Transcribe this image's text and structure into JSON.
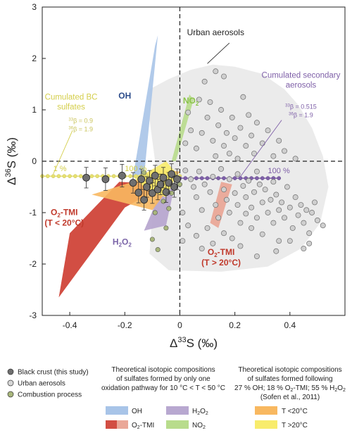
{
  "chart_data": {
    "type": "scatter",
    "xlabel_main": "Δ",
    "xlabel_sup": "33",
    "xlabel_tail": "S (‰)",
    "ylabel_main": "Δ",
    "ylabel_sup": "36",
    "ylabel_tail": "S (‰)",
    "xlim": [
      -0.5,
      0.6
    ],
    "ylim": [
      -3,
      3
    ],
    "x_ticks": [
      {
        "value": -0.4,
        "label": "-0.4"
      },
      {
        "value": -0.2,
        "label": "-0.2"
      },
      {
        "value": 0,
        "label": "0"
      },
      {
        "value": 0.2,
        "label": "0.2"
      },
      {
        "value": 0.4,
        "label": "0.4"
      }
    ],
    "y_ticks": [
      {
        "value": 3,
        "label": "3"
      },
      {
        "value": 2,
        "label": "2"
      },
      {
        "value": 1,
        "label": "1"
      },
      {
        "value": 0,
        "label": "0"
      },
      {
        "value": -1,
        "label": "-1"
      },
      {
        "value": -2,
        "label": "-2"
      },
      {
        "value": -3,
        "label": "-3"
      }
    ],
    "colors": {
      "oh": "#a8c4e8",
      "h2o2": "#b8a8d0",
      "no2": "#b8dc8c",
      "o2tmi_cold": "#d24e43",
      "o2tmi_warm": "#eaa898",
      "mix_cold": "#f8b860",
      "mix_warm": "#f8ec6c",
      "urban_cloud": "#ebebeb",
      "bc_line": "#e6e070",
      "secondary_line": "#7f60a8",
      "black_crust": "#6f6f6f",
      "urban_point": "#cfcfcf",
      "combustion": "#a9b77c"
    },
    "regions": {
      "urban_cloud": [
        [
          -0.11,
          1.4
        ],
        [
          -0.04,
          1.6
        ],
        [
          0.04,
          1.78
        ],
        [
          0.12,
          1.88
        ],
        [
          0.2,
          1.84
        ],
        [
          0.3,
          1.7
        ],
        [
          0.38,
          1.4
        ],
        [
          0.43,
          1.1
        ],
        [
          0.48,
          0.65
        ],
        [
          0.52,
          0.1
        ],
        [
          0.54,
          -0.5
        ],
        [
          0.51,
          -1.2
        ],
        [
          0.44,
          -1.7
        ],
        [
          0.32,
          -2.05
        ],
        [
          0.15,
          -2.15
        ],
        [
          -0.04,
          -2.12
        ],
        [
          -0.11,
          -1.8
        ],
        [
          -0.1,
          -1
        ],
        [
          -0.09,
          0
        ],
        [
          -0.11,
          0.8
        ]
      ],
      "oh": [
        [
          -0.17,
          -0.3
        ],
        [
          -0.13,
          -0.3
        ],
        [
          -0.08,
          2.45
        ],
        [
          -0.09,
          2.25
        ]
      ],
      "no2": [
        [
          -0.03,
          0.0
        ],
        [
          -0.015,
          0.0
        ],
        [
          0.05,
          1.2
        ],
        [
          0.035,
          1.3
        ]
      ],
      "h2o2": [
        [
          -0.05,
          -1.25
        ],
        [
          -0.13,
          -1.35
        ],
        [
          -0.07,
          -0.6
        ],
        [
          -0.02,
          -0.5
        ]
      ],
      "o2tmi_cold": [
        [
          -0.44,
          -2.65
        ],
        [
          -0.4,
          -1.4
        ],
        [
          -0.22,
          -0.4
        ],
        [
          -0.06,
          -0.45
        ],
        [
          -0.1,
          -0.6
        ],
        [
          -0.2,
          -0.9
        ]
      ],
      "o2tmi_warm": [
        [
          0.11,
          -1.2
        ],
        [
          0.14,
          -1.3
        ],
        [
          0.19,
          -0.45
        ],
        [
          0.15,
          -0.4
        ]
      ],
      "mix_cold": [
        [
          -0.32,
          -0.65
        ],
        [
          -0.17,
          -0.4
        ],
        [
          -0.1,
          -0.16
        ],
        [
          0.0,
          -0.2
        ],
        [
          -0.05,
          -0.6
        ],
        [
          -0.1,
          -0.95
        ]
      ],
      "mix_warm": [
        [
          -0.17,
          -0.3
        ],
        [
          -0.12,
          -0.22
        ],
        [
          -0.05,
          0.0
        ],
        [
          -0.01,
          -0.25
        ],
        [
          -0.05,
          -0.7
        ],
        [
          -0.12,
          -0.55
        ]
      ]
    },
    "bc_line": {
      "x": [
        -0.5,
        -0.48,
        -0.46,
        -0.44,
        -0.42,
        -0.4,
        -0.38,
        -0.36,
        -0.34,
        -0.32,
        -0.3,
        -0.28,
        -0.26,
        -0.24,
        -0.22,
        -0.2,
        -0.18,
        -0.16,
        -0.14,
        -0.12,
        -0.1,
        -0.08,
        -0.06,
        -0.04,
        -0.02,
        0.0
      ],
      "y": [
        -0.29,
        -0.29,
        -0.29,
        -0.29,
        -0.29,
        -0.29,
        -0.29,
        -0.29,
        -0.29,
        -0.29,
        -0.29,
        -0.29,
        -0.29,
        -0.29,
        -0.29,
        -0.29,
        -0.29,
        -0.29,
        -0.29,
        -0.29,
        -0.29,
        -0.29,
        -0.29,
        -0.29,
        -0.29,
        -0.29
      ]
    },
    "secondary_line": {
      "x": [
        0.0,
        0.02,
        0.04,
        0.06,
        0.08,
        0.1,
        0.12,
        0.14,
        0.16,
        0.18,
        0.2,
        0.22,
        0.24,
        0.26,
        0.28,
        0.3,
        0.32,
        0.34,
        0.36
      ],
      "y": [
        -0.33,
        -0.33,
        -0.33,
        -0.33,
        -0.33,
        -0.33,
        -0.33,
        -0.33,
        -0.33,
        -0.33,
        -0.33,
        -0.33,
        -0.33,
        -0.33,
        -0.33,
        -0.33,
        -0.33,
        -0.33,
        -0.33
      ]
    },
    "black_crust": [
      {
        "x": -0.34,
        "y": -0.32,
        "err": 0.2
      },
      {
        "x": -0.27,
        "y": -0.35,
        "err": 0.22
      },
      {
        "x": -0.21,
        "y": -0.28,
        "err": 0.22
      },
      {
        "x": -0.17,
        "y": -0.42,
        "err": 0.2
      },
      {
        "x": -0.15,
        "y": -0.61,
        "err": 0.2
      },
      {
        "x": -0.14,
        "y": -0.35,
        "err": 0.2
      },
      {
        "x": -0.13,
        "y": -0.75,
        "err": 0.2
      },
      {
        "x": -0.12,
        "y": -0.5,
        "err": 0.2
      },
      {
        "x": -0.11,
        "y": -0.38,
        "err": 0.2
      },
      {
        "x": -0.1,
        "y": -0.62,
        "err": 0.2
      },
      {
        "x": -0.09,
        "y": -0.28,
        "err": 0.2
      },
      {
        "x": -0.08,
        "y": -0.55,
        "err": 0.2
      },
      {
        "x": -0.07,
        "y": -0.45,
        "err": 0.2
      },
      {
        "x": -0.06,
        "y": -0.32,
        "err": 0.2
      },
      {
        "x": -0.05,
        "y": -0.6,
        "err": 0.2
      },
      {
        "x": -0.04,
        "y": -0.42,
        "err": 0.2
      },
      {
        "x": -0.03,
        "y": -0.25,
        "err": 0.2
      },
      {
        "x": -0.02,
        "y": -0.5,
        "err": 0.2
      },
      {
        "x": -0.01,
        "y": -0.35,
        "err": 0.2
      }
    ],
    "urban_aerosols": [
      [
        0.02,
        -0.18
      ],
      [
        0.04,
        -0.35
      ],
      [
        0.05,
        -0.5
      ],
      [
        0.06,
        -0.7
      ],
      [
        0.07,
        -0.2
      ],
      [
        0.08,
        -0.95
      ],
      [
        0.09,
        -0.45
      ],
      [
        0.1,
        -1.3
      ],
      [
        0.11,
        -0.6
      ],
      [
        0.12,
        -0.3
      ],
      [
        0.12,
        -1.6
      ],
      [
        0.13,
        -0.85
      ],
      [
        0.14,
        -1.1
      ],
      [
        0.15,
        -0.15
      ],
      [
        0.16,
        -0.55
      ],
      [
        0.16,
        -1.4
      ],
      [
        0.17,
        -0.75
      ],
      [
        0.18,
        -0.35
      ],
      [
        0.18,
        -1.0
      ],
      [
        0.19,
        -1.5
      ],
      [
        0.2,
        -0.62
      ],
      [
        0.21,
        -0.25
      ],
      [
        0.21,
        -0.85
      ],
      [
        0.22,
        -1.2
      ],
      [
        0.23,
        -0.48
      ],
      [
        0.24,
        -0.7
      ],
      [
        0.24,
        -1.02
      ],
      [
        0.25,
        -0.38
      ],
      [
        0.26,
        -0.9
      ],
      [
        0.26,
        -1.3
      ],
      [
        0.27,
        -0.6
      ],
      [
        0.28,
        -0.2
      ],
      [
        0.28,
        -1.1
      ],
      [
        0.29,
        -0.45
      ],
      [
        0.3,
        -0.8
      ],
      [
        0.3,
        -1.42
      ],
      [
        0.31,
        -0.55
      ],
      [
        0.32,
        -1.0
      ],
      [
        0.33,
        -0.75
      ],
      [
        0.34,
        -0.4
      ],
      [
        0.34,
        -1.2
      ],
      [
        0.35,
        -0.65
      ],
      [
        0.36,
        -0.95
      ],
      [
        0.36,
        -1.55
      ],
      [
        0.37,
        -0.8
      ],
      [
        0.38,
        -1.1
      ],
      [
        0.39,
        -0.5
      ],
      [
        0.4,
        -0.9
      ],
      [
        0.41,
        -1.3
      ],
      [
        0.42,
        -0.7
      ],
      [
        0.43,
        -1.05
      ],
      [
        0.44,
        -0.85
      ],
      [
        0.45,
        -1.2
      ],
      [
        0.46,
        -0.95
      ],
      [
        0.47,
        -1.4
      ],
      [
        0.48,
        -1.0
      ],
      [
        0.49,
        -0.8
      ],
      [
        0.5,
        -1.15
      ],
      [
        0.45,
        -1.7
      ],
      [
        0.4,
        -1.55
      ],
      [
        0.52,
        -1.25
      ],
      [
        0.47,
        -1.6
      ],
      [
        0.02,
        0.35
      ],
      [
        0.04,
        0.6
      ],
      [
        0.03,
        0.95
      ],
      [
        0.06,
        0.25
      ],
      [
        0.08,
        0.55
      ],
      [
        0.1,
        0.85
      ],
      [
        0.11,
        1.15
      ],
      [
        0.12,
        0.4
      ],
      [
        0.13,
        0.1
      ],
      [
        0.14,
        0.7
      ],
      [
        0.15,
        1.0
      ],
      [
        0.16,
        0.3
      ],
      [
        0.17,
        0.55
      ],
      [
        0.18,
        0.15
      ],
      [
        0.19,
        0.85
      ],
      [
        0.2,
        0.45
      ],
      [
        0.21,
        0.05
      ],
      [
        0.22,
        0.65
      ],
      [
        0.23,
        1.25
      ],
      [
        0.24,
        0.3
      ],
      [
        0.25,
        0.9
      ],
      [
        0.26,
        0.5
      ],
      [
        0.27,
        0.15
      ],
      [
        0.28,
        0.75
      ],
      [
        0.3,
        0.35
      ],
      [
        0.32,
        0.6
      ],
      [
        0.34,
        0.1
      ],
      [
        0.36,
        0.4
      ],
      [
        0.38,
        0.2
      ],
      [
        0.42,
        0.05
      ],
      [
        0.09,
        1.55
      ],
      [
        0.13,
        1.75
      ],
      [
        0.16,
        1.65
      ],
      [
        0.07,
        1.2
      ],
      [
        0.01,
        -1.0
      ],
      [
        0.03,
        -1.25
      ],
      [
        0.01,
        -1.55
      ],
      [
        0.06,
        -1.45
      ],
      [
        0.08,
        -1.7
      ],
      [
        0.22,
        -1.65
      ],
      [
        0.28,
        -1.85
      ],
      [
        0.35,
        -1.75
      ]
    ],
    "combustion": [
      [
        -0.03,
        -0.62
      ],
      [
        -0.06,
        -0.78
      ],
      [
        -0.04,
        -0.92
      ],
      [
        -0.09,
        -1.0
      ],
      [
        -0.05,
        -1.3
      ],
      [
        -0.08,
        -1.72
      ],
      [
        -0.1,
        -1.52
      ],
      [
        0.0,
        -0.45
      ],
      [
        -0.02,
        -0.3
      ],
      [
        -0.13,
        -0.22
      ]
    ],
    "markers": [
      {
        "x": -0.46,
        "y": -0.29,
        "label": "1 %",
        "color": "#d4ce4a"
      },
      {
        "x": -0.2,
        "y": -0.29,
        "label": "100 %",
        "color": "#d4ce4a"
      },
      {
        "x": 0.32,
        "y": -0.33,
        "label": "100 %",
        "color": "#7f60a8"
      }
    ],
    "annotations": {
      "urban": {
        "text": "Urban aerosols",
        "x": 0.13,
        "y": 2.45
      },
      "cumulated_secondary": {
        "lines": [
          "Cumulated  secondary",
          "aerosols"
        ],
        "x": 0.44,
        "y": 1.62
      },
      "cumulated_bc": {
        "lines": [
          "Cumulated BC",
          "sulfates"
        ],
        "x": -0.395,
        "y": 1.2
      },
      "oh": {
        "text": "OH",
        "x": -0.2,
        "y": 1.22
      },
      "no2": {
        "main": "NO",
        "sub": "2",
        "x": 0.04,
        "y": 1.12
      },
      "h2o2": {
        "main": "H",
        "sub1": "2",
        "mid": "O",
        "sub2": "2",
        "x": -0.21,
        "y": -1.62
      },
      "o2tmi_cold": {
        "main": "O",
        "sub": "2",
        "tail": "-TMI",
        "line2": "(T < 20°C)",
        "x": -0.42,
        "y": -1.05
      },
      "o2tmi_warm": {
        "main": "O",
        "sub": "2",
        "tail": "-TMI",
        "line2": "(T > 20°C)",
        "x": 0.15,
        "y": -1.82
      },
      "beta_left": {
        "l1_sup": "33",
        "l1_text": "β = 0.9",
        "l2_sup": "36",
        "l2_text": "β = 1.9",
        "x": -0.36,
        "y": 0.75
      },
      "beta_right": {
        "l1_sup": "33",
        "l1_text": "β = 0.515",
        "l2_sup": "36",
        "l2_text": "β = 1.9",
        "x": 0.44,
        "y": 1.02
      }
    }
  },
  "legend": {
    "points": [
      {
        "label": "Black crust (this study)",
        "color": "#6f6f6f"
      },
      {
        "label": "Urban aerosols",
        "color": "#d6d6d6"
      },
      {
        "label": "Combustion process",
        "color": "#a9b77c"
      }
    ],
    "middle_title": [
      "Theoretical isotopic compositions",
      "of sulfates formed by only one",
      "oxidation pathway for 10 °C < T < 50 °C"
    ],
    "oh": "OH",
    "h2o2_main": "H",
    "h2o2_sub1": "2",
    "h2o2_mid": "O",
    "h2o2_sub2": "2",
    "o2tmi_main": "O",
    "o2tmi_sub": "2",
    "o2tmi_tail": "-TMI",
    "no2_main": "NO",
    "no2_sub": "2",
    "right_title_1": "Theoretical isotopic compositions",
    "right_title_2": "of sulfates formed following",
    "right_title_3a": "27 % OH; 18 % O",
    "right_title_3b": "2",
    "right_title_3c": "-TMI; 55 % H",
    "right_title_3d": "2",
    "right_title_3e": "O",
    "right_title_3f": "2",
    "right_title_4": "(Sofen et al., 2011)",
    "t_cold": "T <20°C",
    "t_warm": "T >20°C"
  }
}
